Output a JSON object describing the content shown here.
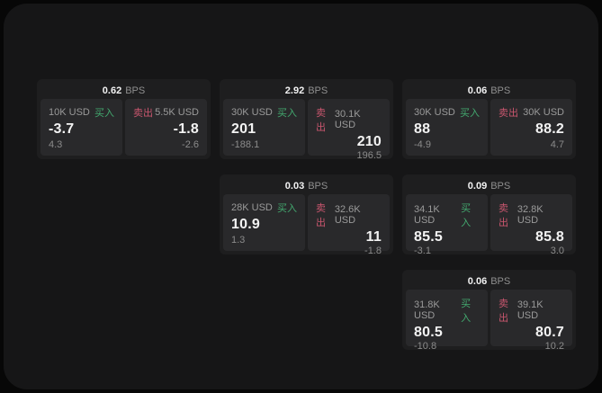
{
  "theme": {
    "page_bg": "#070707",
    "container_bg": "#161617",
    "card_bg": "#1e1e1f",
    "panel_bg": "#29292b",
    "label_gray": "#9a9a9a",
    "value_white": "#f3f3f3",
    "buy_color": "#43a96f",
    "sell_color": "#c9566e"
  },
  "labels": {
    "bps": "BPS",
    "buy": "买入",
    "sell": "卖出"
  },
  "cards": [
    {
      "row": 1,
      "col": 1,
      "bps": "0.62",
      "buy": {
        "size": "10K USD",
        "value": "-3.7",
        "delta": "4.3"
      },
      "sell": {
        "size": "5.5K USD",
        "value": "-1.8",
        "delta": "-2.6"
      }
    },
    {
      "row": 1,
      "col": 2,
      "bps": "2.92",
      "buy": {
        "size": "30K USD",
        "value": "201",
        "delta": "-188.1"
      },
      "sell": {
        "size": "30.1K USD",
        "value": "210",
        "delta": "196.5"
      }
    },
    {
      "row": 1,
      "col": 3,
      "bps": "0.06",
      "buy": {
        "size": "30K USD",
        "value": "88",
        "delta": "-4.9"
      },
      "sell": {
        "size": "30K USD",
        "value": "88.2",
        "delta": "4.7"
      }
    },
    {
      "row": 2,
      "col": 2,
      "bps": "0.03",
      "buy": {
        "size": "28K USD",
        "value": "10.9",
        "delta": "1.3"
      },
      "sell": {
        "size": "32.6K USD",
        "value": "11",
        "delta": "-1.8"
      }
    },
    {
      "row": 2,
      "col": 3,
      "bps": "0.09",
      "buy": {
        "size": "34.1K USD",
        "value": "85.5",
        "delta": "-3.1"
      },
      "sell": {
        "size": "32.8K USD",
        "value": "85.8",
        "delta": "3.0"
      }
    },
    {
      "row": 3,
      "col": 3,
      "bps": "0.06",
      "buy": {
        "size": "31.8K USD",
        "value": "80.5",
        "delta": "-10.8"
      },
      "sell": {
        "size": "39.1K USD",
        "value": "80.7",
        "delta": "10.2"
      }
    }
  ]
}
